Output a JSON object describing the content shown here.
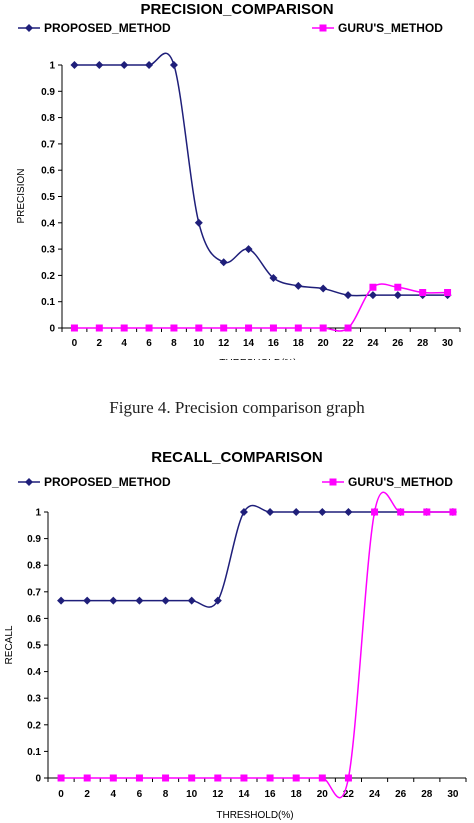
{
  "caption": "Figure 4.   Precision comparison graph",
  "chart_data": [
    {
      "type": "line",
      "title": "PRECISION_COMPARISON",
      "xlabel": "THRESHOLD(%)",
      "ylabel": "PRECISION",
      "x": [
        0,
        2,
        4,
        6,
        8,
        10,
        12,
        14,
        16,
        18,
        20,
        22,
        24,
        26,
        28,
        30
      ],
      "y_ticks": [
        0,
        0.1,
        0.2,
        0.3,
        0.4,
        0.5,
        0.6,
        0.7,
        0.8,
        0.9,
        1
      ],
      "ylim": [
        0,
        1
      ],
      "grid": false,
      "legend_position": "top",
      "series": [
        {
          "name": "PROPOSED_METHOD",
          "color": "#1f1f7a",
          "marker": "diamond",
          "values": [
            1,
            1,
            1,
            1,
            1,
            0.4,
            0.25,
            0.3,
            0.19,
            0.16,
            0.15,
            0.125,
            0.125,
            0.125,
            0.125,
            0.125
          ]
        },
        {
          "name": "GURU'S_METHOD",
          "color": "#ff00ff",
          "marker": "square",
          "values": [
            0,
            0,
            0,
            0,
            0,
            0,
            0,
            0,
            0,
            0,
            0,
            0,
            0.155,
            0.155,
            0.135,
            0.135
          ]
        }
      ]
    },
    {
      "type": "line",
      "title": "RECALL_COMPARISON",
      "xlabel": "THRESHOLD(%)",
      "ylabel": "RECALL",
      "x": [
        0,
        2,
        4,
        6,
        8,
        10,
        12,
        14,
        16,
        18,
        20,
        22,
        24,
        26,
        28,
        30
      ],
      "y_ticks": [
        0,
        0.1,
        0.2,
        0.3,
        0.4,
        0.5,
        0.6,
        0.7,
        0.8,
        0.9,
        1
      ],
      "ylim": [
        0,
        1
      ],
      "grid": false,
      "legend_position": "top",
      "series": [
        {
          "name": "PROPOSED_METHOD",
          "color": "#1f1f7a",
          "marker": "diamond",
          "values": [
            0.667,
            0.667,
            0.667,
            0.667,
            0.667,
            0.667,
            0.667,
            1,
            1,
            1,
            1,
            1,
            1,
            1,
            1,
            1
          ]
        },
        {
          "name": "GURU'S_METHOD",
          "color": "#ff00ff",
          "marker": "square",
          "values": [
            0,
            0,
            0,
            0,
            0,
            0,
            0,
            0,
            0,
            0,
            0,
            0,
            1,
            1,
            1,
            1
          ]
        }
      ]
    }
  ]
}
